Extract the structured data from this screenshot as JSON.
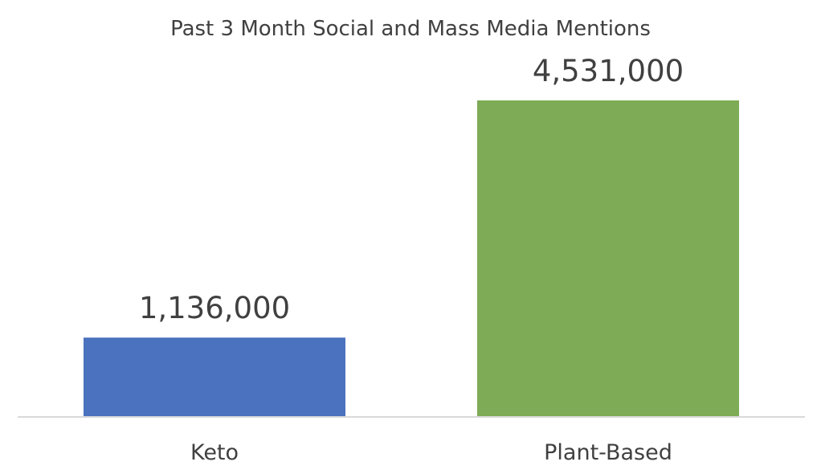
{
  "chart_data": {
    "type": "bar",
    "title": "Past 3 Month Social and Mass Media Mentions",
    "categories": [
      "Keto",
      "Plant-Based"
    ],
    "values": [
      1136000,
      4531000
    ],
    "data_labels": [
      "1,136,000",
      "4,531,000"
    ],
    "colors": [
      "#4a72be",
      "#7eab55"
    ],
    "axis_color": "#d9d9d9",
    "ylim": [
      0,
      4531000
    ],
    "grid": false,
    "legend": "none"
  }
}
